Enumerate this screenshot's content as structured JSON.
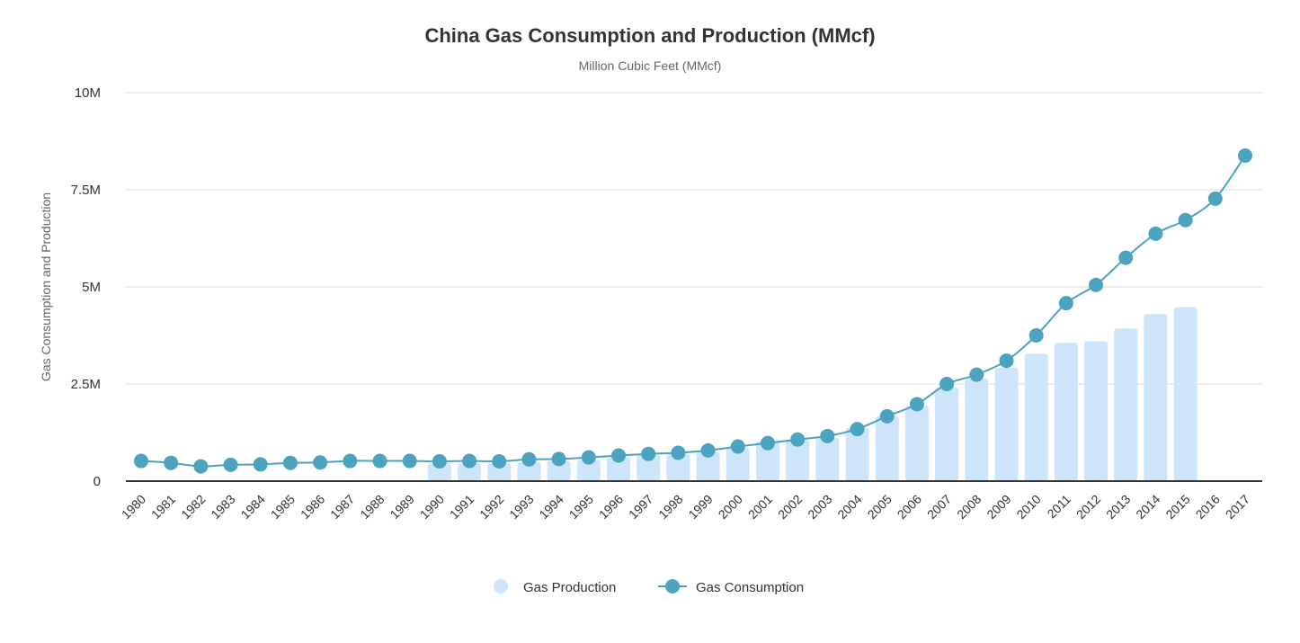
{
  "chart_data": {
    "type": "bar+line",
    "title": "China Gas Consumption and Production (MMcf)",
    "subtitle": "Million Cubic Feet (MMcf)",
    "xlabel": "",
    "ylabel": "Gas Consumption and Production",
    "ylim": [
      0,
      10000000
    ],
    "yticks": [
      0,
      2500000,
      5000000,
      7500000,
      10000000
    ],
    "ytick_labels": [
      "0",
      "2.5M",
      "5M",
      "7.5M",
      "10M"
    ],
    "grid": true,
    "legend": "bottom",
    "categories": [
      "1980",
      "1981",
      "1982",
      "1983",
      "1984",
      "1985",
      "1986",
      "1987",
      "1988",
      "1989",
      "1990",
      "1991",
      "1992",
      "1993",
      "1994",
      "1995",
      "1996",
      "1997",
      "1998",
      "1999",
      "2000",
      "2001",
      "2002",
      "2003",
      "2004",
      "2005",
      "2006",
      "2007",
      "2008",
      "2009",
      "2010",
      "2011",
      "2012",
      "2013",
      "2014",
      "2015",
      "2016",
      "2017"
    ],
    "series": [
      {
        "name": "Gas Production",
        "type": "bar",
        "color": "#cce5fa",
        "values": [
          null,
          null,
          null,
          null,
          null,
          null,
          null,
          null,
          null,
          null,
          460000,
          460000,
          460000,
          490000,
          520000,
          540000,
          610000,
          670000,
          700000,
          750000,
          860000,
          1020000,
          1070000,
          1110000,
          1370000,
          1670000,
          1940000,
          2410000,
          2640000,
          2920000,
          3280000,
          3560000,
          3600000,
          3930000,
          4300000,
          4480000,
          null,
          null
        ]
      },
      {
        "name": "Gas Consumption",
        "type": "line",
        "color": "#4ba3c0",
        "values": [
          520000,
          470000,
          380000,
          420000,
          430000,
          470000,
          480000,
          520000,
          520000,
          520000,
          510000,
          520000,
          510000,
          560000,
          570000,
          610000,
          660000,
          700000,
          730000,
          790000,
          890000,
          980000,
          1070000,
          1160000,
          1340000,
          1670000,
          1980000,
          2500000,
          2740000,
          3100000,
          3750000,
          4580000,
          5050000,
          5750000,
          6370000,
          6720000,
          7270000,
          8380000
        ]
      }
    ]
  }
}
